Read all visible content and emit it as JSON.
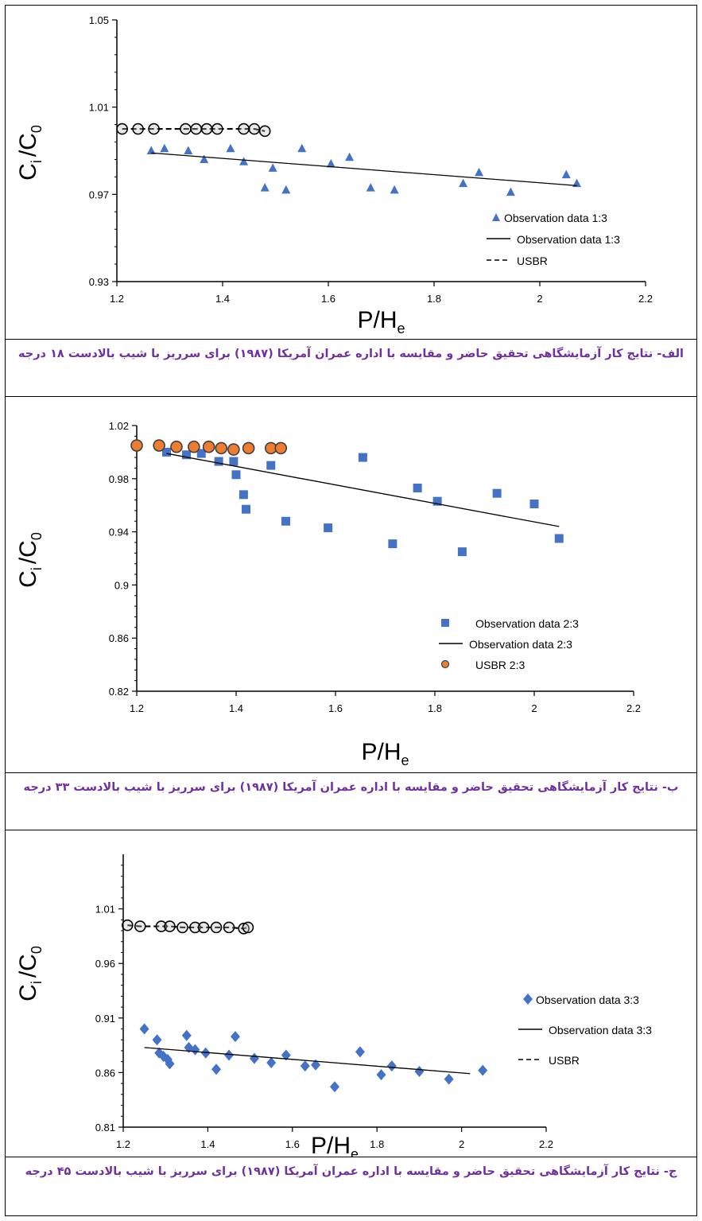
{
  "captions": [
    "الف- نتایج کار آزمایشگاهی تحقیق حاضر و مقایسه با اداره عمران آمریکا (۱۹۸۷) برای سرریز با شیب بالادست ۱۸ درجه",
    "ب- نتایج کار آزمایشگاهی تحقیق حاضر و مقایسه با اداره عمران آمریکا (۱۹۸۷) برای سرریز با شیب بالادست ۳۳ درجه",
    "ج- نتایج کار آزمایشگاهی تحقیق حاضر و مقایسه با اداره عمران آمریکا (۱۹۸۷) برای سرریز با شیب بالادست ۴۵ درجه"
  ],
  "colors": {
    "observation": "#4472c4",
    "usbr_fill_orange": "#ed7d31",
    "usbr_fill_grey": "#bfbfbf",
    "caption": "#7030a0"
  },
  "chart_data": [
    {
      "type": "scatter",
      "title": "",
      "xlabel": "P/H",
      "xlabel_sub": "e",
      "ylabel": "C",
      "ylabel_sub": "i",
      "ylabel_tail": "/C",
      "ylabel_tail_sub": "0",
      "xlim": [
        1.2,
        2.2
      ],
      "ylim": [
        0.93,
        1.05
      ],
      "xticks": [
        "1.2",
        "1.4",
        "1.6",
        "1.8",
        "2",
        "2.2"
      ],
      "yticks": [
        "0.93",
        "0.97",
        "1.01",
        "1.05"
      ],
      "yticks_values": [
        0.93,
        0.97,
        1.01,
        1.05
      ],
      "legend_position": "bottom-right",
      "series": [
        {
          "name": "Observation data 1:3",
          "kind": "marker",
          "marker": "triangle",
          "x": [
            1.265,
            1.29,
            1.335,
            1.365,
            1.415,
            1.44,
            1.48,
            1.495,
            1.52,
            1.55,
            1.605,
            1.64,
            1.68,
            1.725,
            1.855,
            1.885,
            1.945,
            2.05,
            2.07
          ],
          "y": [
            0.99,
            0.991,
            0.99,
            0.986,
            0.991,
            0.985,
            0.973,
            0.982,
            0.972,
            0.991,
            0.984,
            0.987,
            0.973,
            0.972,
            0.975,
            0.98,
            0.971,
            0.979,
            0.975
          ]
        },
        {
          "name": "Observation data 1:3",
          "kind": "line",
          "x": [
            1.265,
            2.07
          ],
          "y": [
            0.989,
            0.974
          ]
        },
        {
          "name": "USBR",
          "kind": "dashed-circles",
          "x": [
            1.21,
            1.24,
            1.27,
            1.33,
            1.35,
            1.37,
            1.39,
            1.44,
            1.46,
            1.48
          ],
          "y": [
            1.0,
            1.0,
            1.0,
            1.0,
            1.0,
            1.0,
            1.0,
            1.0,
            1.0,
            0.999
          ]
        }
      ]
    },
    {
      "type": "scatter",
      "title": "",
      "xlabel": "P/H",
      "xlabel_sub": "e",
      "ylabel": "C",
      "ylabel_sub": "i",
      "ylabel_tail": "/C",
      "ylabel_tail_sub": "0",
      "xlim": [
        1.2,
        2.2
      ],
      "ylim": [
        0.82,
        1.02
      ],
      "xticks": [
        "1.2",
        "1.4",
        "1.6",
        "1.8",
        "2",
        "2.2"
      ],
      "yticks": [
        "0.82",
        "0.86",
        "0.9",
        "0.94",
        "0.98",
        "1.02"
      ],
      "yticks_values": [
        0.82,
        0.86,
        0.9,
        0.94,
        0.98,
        1.02
      ],
      "legend_position": "bottom-right",
      "series": [
        {
          "name": "Observation data 2:3",
          "kind": "marker",
          "marker": "square",
          "x": [
            1.26,
            1.3,
            1.33,
            1.365,
            1.395,
            1.4,
            1.415,
            1.42,
            1.47,
            1.5,
            1.585,
            1.655,
            1.715,
            1.765,
            1.805,
            1.855,
            1.925,
            2.0,
            2.05
          ],
          "y": [
            1.0,
            0.998,
            0.999,
            0.993,
            0.993,
            0.983,
            0.968,
            0.957,
            0.99,
            0.948,
            0.943,
            0.996,
            0.931,
            0.973,
            0.963,
            0.925,
            0.969,
            0.961,
            0.935
          ]
        },
        {
          "name": "Observation data 2:3",
          "kind": "line",
          "x": [
            1.26,
            2.05
          ],
          "y": [
            0.999,
            0.944
          ]
        },
        {
          "name": "USBR 2:3",
          "kind": "orange-circles",
          "x": [
            1.2,
            1.245,
            1.28,
            1.315,
            1.345,
            1.37,
            1.395,
            1.425,
            1.47,
            1.49
          ],
          "y": [
            1.005,
            1.005,
            1.004,
            1.004,
            1.004,
            1.003,
            1.002,
            1.003,
            1.003,
            1.003
          ]
        }
      ]
    },
    {
      "type": "scatter",
      "title": "",
      "xlabel": "P/H",
      "xlabel_sub": "e",
      "ylabel": "C",
      "ylabel_sub": "i",
      "ylabel_tail": "/C",
      "ylabel_tail_sub": "0",
      "xlim": [
        1.2,
        2.2
      ],
      "ylim": [
        0.81,
        1.06
      ],
      "xticks": [
        "1.2",
        "1.4",
        "1.6",
        "1.8",
        "2",
        "2.2"
      ],
      "yticks": [
        "0.81",
        "0.86",
        "0.91",
        "0.96",
        "1.01"
      ],
      "yticks_values": [
        0.81,
        0.86,
        0.91,
        0.96,
        1.01
      ],
      "legend_position": "right",
      "series": [
        {
          "name": "Observation data 3:3",
          "kind": "marker",
          "marker": "diamond",
          "x": [
            1.25,
            1.28,
            1.285,
            1.295,
            1.305,
            1.31,
            1.35,
            1.355,
            1.37,
            1.395,
            1.42,
            1.45,
            1.465,
            1.51,
            1.55,
            1.585,
            1.63,
            1.655,
            1.7,
            1.76,
            1.81,
            1.835,
            1.9,
            1.97,
            2.05
          ],
          "y": [
            0.9,
            0.89,
            0.878,
            0.875,
            0.872,
            0.868,
            0.894,
            0.883,
            0.881,
            0.878,
            0.863,
            0.876,
            0.893,
            0.873,
            0.869,
            0.876,
            0.866,
            0.867,
            0.847,
            0.879,
            0.858,
            0.866,
            0.861,
            0.854,
            0.862
          ]
        },
        {
          "name": "Observation data 3:3",
          "kind": "line",
          "x": [
            1.25,
            2.02
          ],
          "y": [
            0.883,
            0.859
          ]
        },
        {
          "name": "USBR",
          "kind": "dashed-circles",
          "x": [
            1.21,
            1.24,
            1.29,
            1.31,
            1.34,
            1.37,
            1.39,
            1.42,
            1.45,
            1.485,
            1.495
          ],
          "y": [
            0.995,
            0.994,
            0.994,
            0.994,
            0.993,
            0.993,
            0.993,
            0.993,
            0.993,
            0.992,
            0.993
          ]
        }
      ]
    }
  ]
}
